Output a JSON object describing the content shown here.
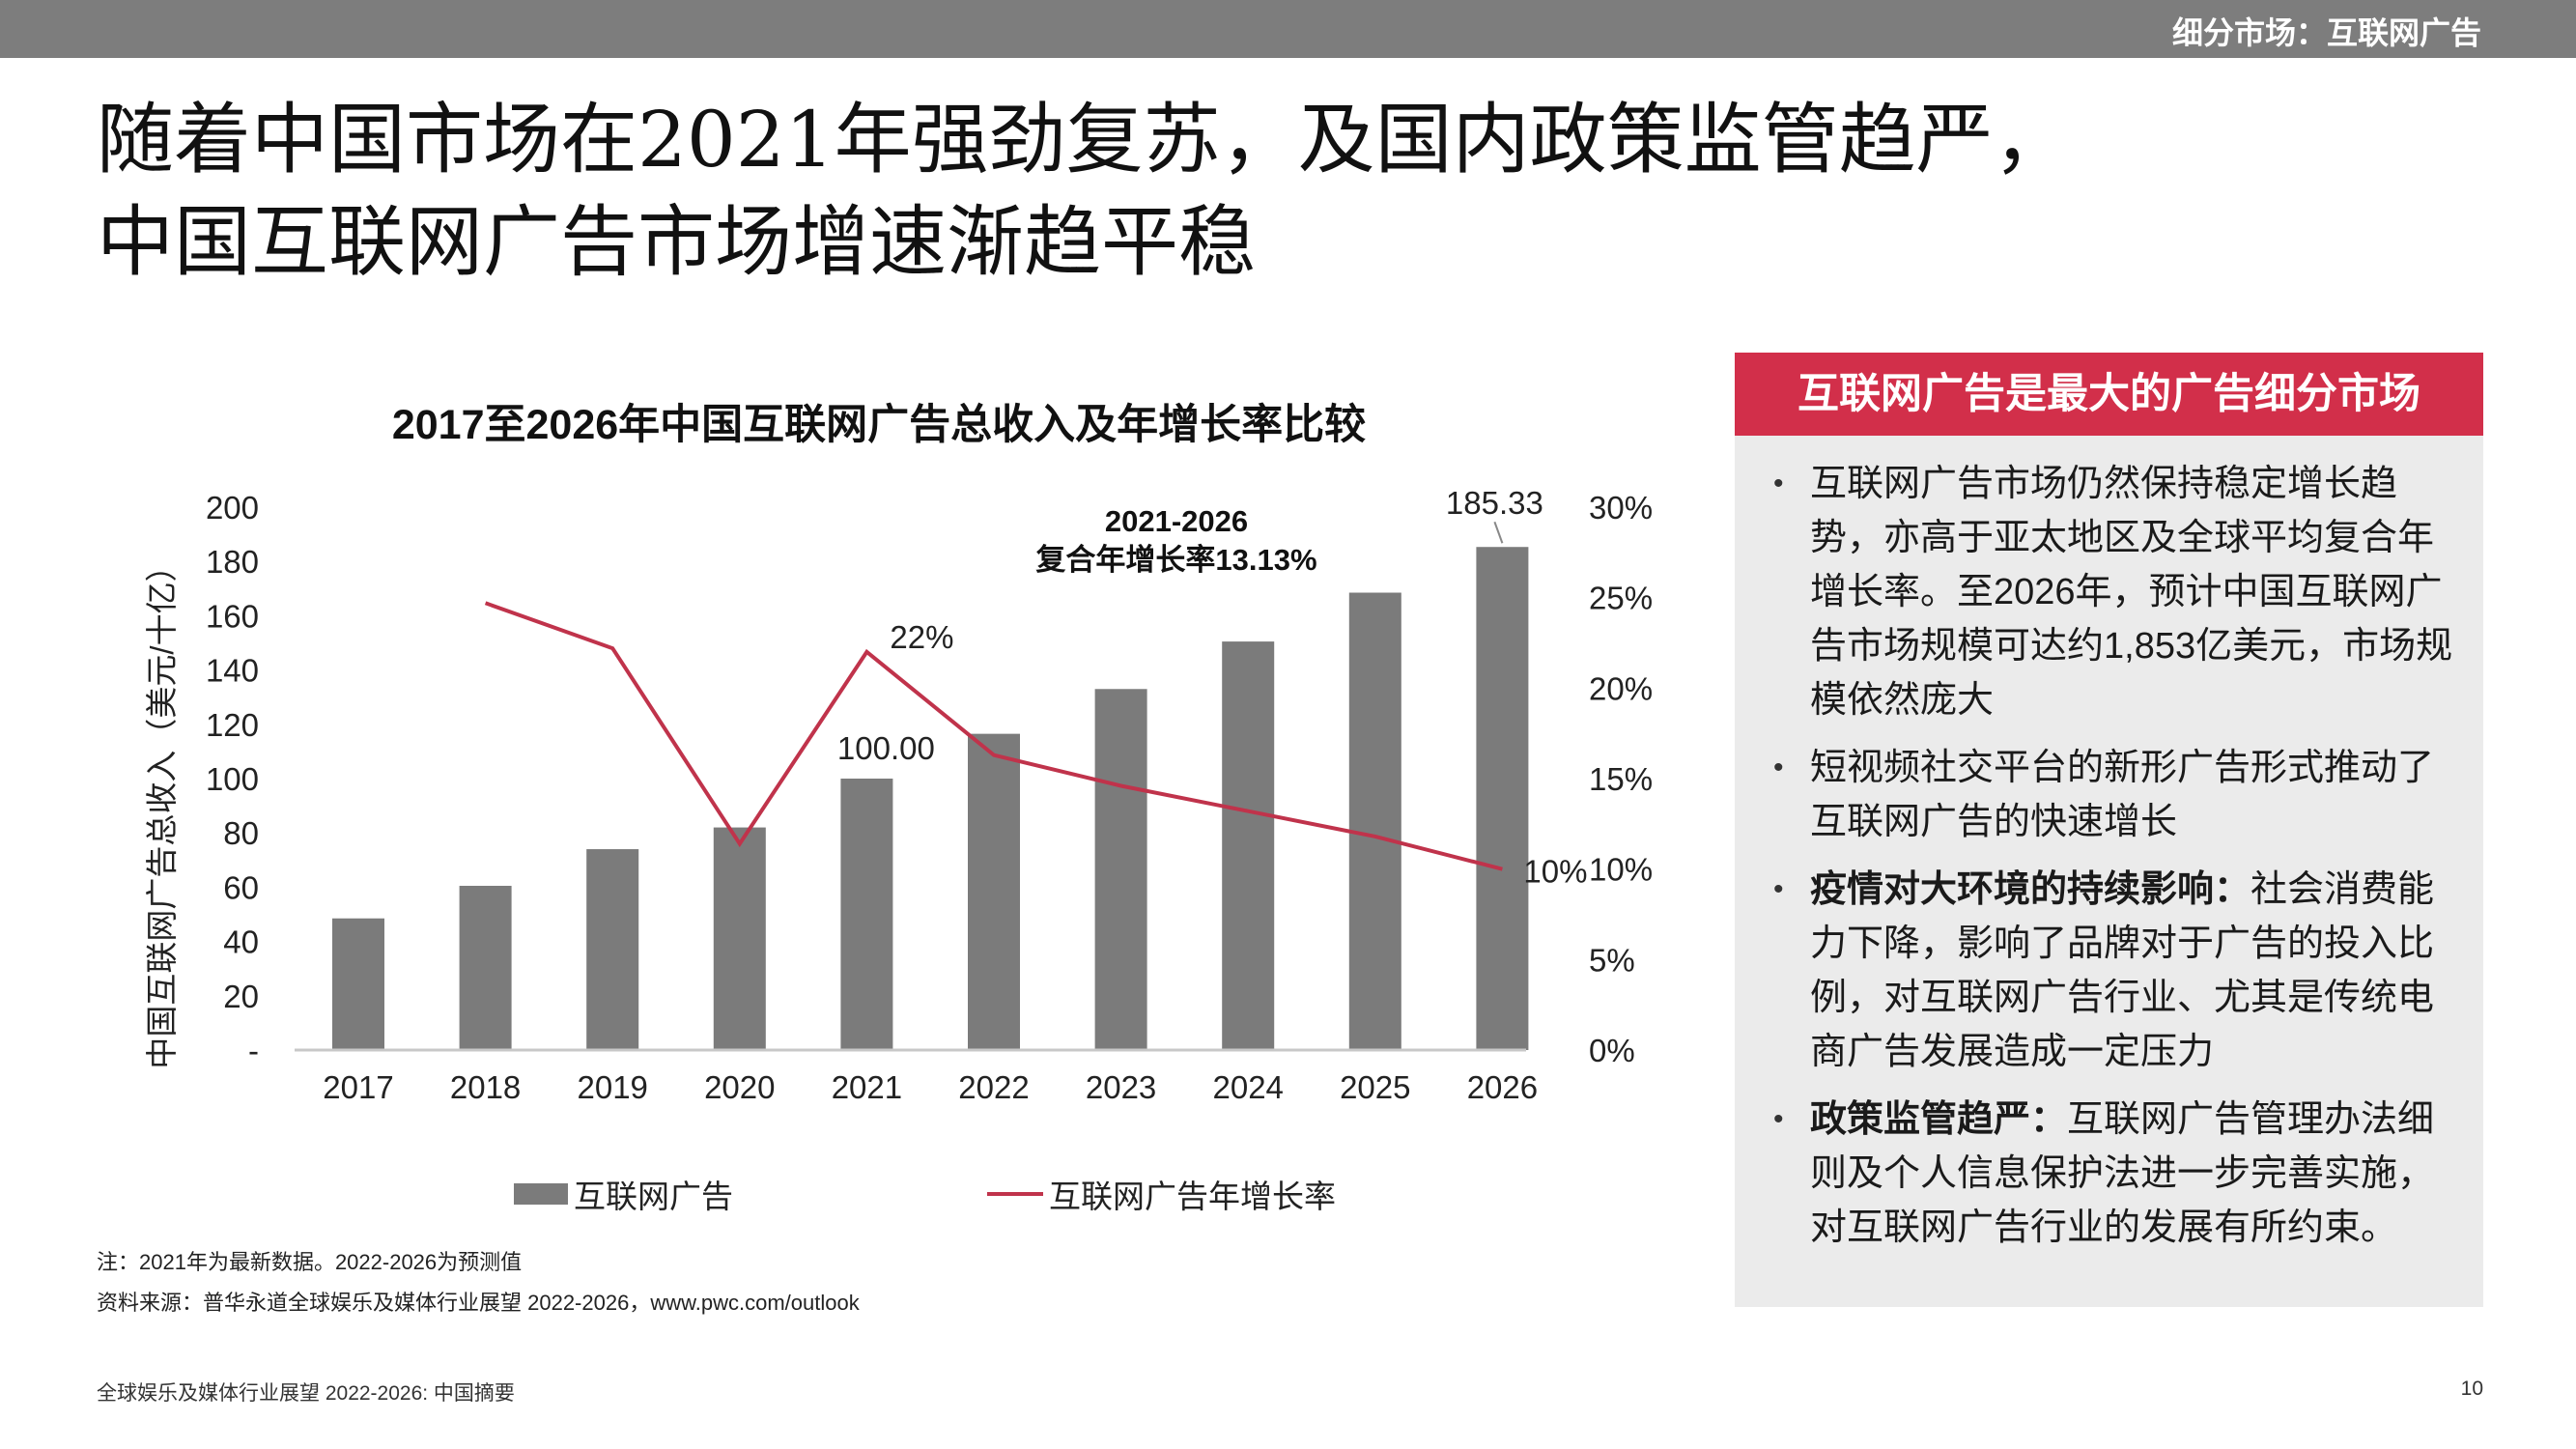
{
  "header": {
    "section": "细分市场：互联网广告"
  },
  "headline": {
    "line1": "随着中国市场在2021年强劲复苏，及国内政策监管趋严，",
    "line2": "中国互联网广告市场增速渐趋平稳"
  },
  "chart_data": {
    "type": "bar+line",
    "title": "2017至2026年中国互联网广告总收入及年增长率比较",
    "categories": [
      "2017",
      "2018",
      "2019",
      "2020",
      "2021",
      "2022",
      "2023",
      "2024",
      "2025",
      "2026"
    ],
    "series": [
      {
        "name": "互联网广告",
        "type": "bar",
        "axis": "left",
        "values": [
          48.5,
          60.5,
          74,
          82,
          100,
          116.5,
          133,
          150.5,
          168.5,
          185.33
        ]
      },
      {
        "name": "互联网广告年增长率",
        "type": "line",
        "axis": "right",
        "values": [
          null,
          24.7,
          22.2,
          11.4,
          22,
          16.3,
          14.6,
          13.2,
          11.8,
          10
        ]
      }
    ],
    "y_left": {
      "label": "中国互联网广告总收入（美元/十亿）",
      "range": [
        0,
        200
      ],
      "ticks": [
        "-",
        "20",
        "40",
        "60",
        "80",
        "100",
        "120",
        "140",
        "160",
        "180",
        "200"
      ]
    },
    "y_right": {
      "range": [
        0,
        30
      ],
      "ticks": [
        "0%",
        "5%",
        "10%",
        "15%",
        "20%",
        "25%",
        "30%"
      ]
    },
    "data_labels": {
      "bar_2021": "100.00",
      "bar_2026": "185.33",
      "rate_2021": "22%",
      "rate_2026": "10%"
    },
    "annotation": {
      "line1": "2021-2026",
      "line2": "复合年增长率13.13%"
    },
    "legend": {
      "bar": "互联网广告",
      "line": "互联网广告年增长率"
    },
    "colors": {
      "bar": "#7b7b7b",
      "line": "#c0334b"
    }
  },
  "notes": {
    "note": "注：2021年为最新数据。2022-2026为预测值",
    "source": "资料来源：普华永道全球娱乐及媒体行业展望 2022-2026，www.pwc.com/outlook"
  },
  "panel": {
    "title": "互联网广告是最大的广告细分市场",
    "bullets": [
      {
        "bold": "",
        "text": "互联网广告市场仍然保持稳定增长趋势，亦高于亚太地区及全球平均复合年增长率。至2026年，预计中国互联网广告市场规模可达约1,853亿美元，市场规模依然庞大"
      },
      {
        "bold": "",
        "text": "短视频社交平台的新形广告形式推动了互联网广告的快速增长"
      },
      {
        "bold": "疫情对大环境的持续影响：",
        "text": "社会消费能力下降，影响了品牌对于广告的投入比例，对互联网广告行业、尤其是传统电商广告发展造成一定压力"
      },
      {
        "bold": "政策监管趋严：",
        "text": "互联网广告管理办法细则及个人信息保护法进一步完善实施，对互联网广告行业的发展有所约束。"
      }
    ]
  },
  "footer": {
    "left": "全球娱乐及媒体行业展望 2022-2026: 中国摘要",
    "page": "10"
  }
}
